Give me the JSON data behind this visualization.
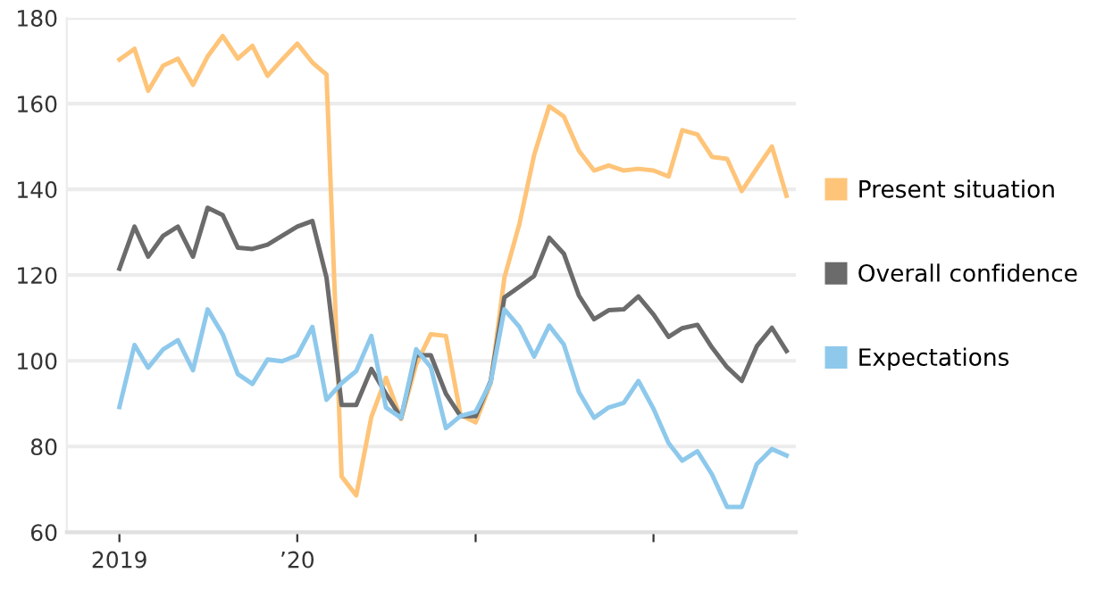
{
  "chart_data": {
    "type": "line",
    "x": [
      "2019-01",
      "2019-02",
      "2019-03",
      "2019-04",
      "2019-05",
      "2019-06",
      "2019-07",
      "2019-08",
      "2019-09",
      "2019-10",
      "2019-11",
      "2019-12",
      "2020-01",
      "2020-02",
      "2020-03",
      "2020-04",
      "2020-05",
      "2020-06",
      "2020-07",
      "2020-08",
      "2020-09",
      "2020-10",
      "2020-11",
      "2020-12",
      "2021-01",
      "2021-02",
      "2021-03",
      "2021-04",
      "2021-05",
      "2021-06",
      "2021-07",
      "2021-08",
      "2021-09",
      "2021-10",
      "2021-11",
      "2021-12",
      "2022-01",
      "2022-02",
      "2022-03",
      "2022-04",
      "2022-05",
      "2022-06",
      "2022-07",
      "2022-08",
      "2022-09",
      "2022-10"
    ],
    "series": [
      {
        "name": "Present situation",
        "color": "#fec479",
        "values": [
          170.3,
          172.8,
          163,
          168.9,
          170.5,
          164.4,
          171,
          175.8,
          170.5,
          173.5,
          166.5,
          170.3,
          174,
          169.6,
          166.8,
          73,
          68.6,
          86.9,
          96,
          86.4,
          99.2,
          106.2,
          105.8,
          87.4,
          85.6,
          94.8,
          119.4,
          132,
          148,
          159.4,
          157,
          149,
          144.4,
          145.6,
          144.4,
          144.8,
          144.4,
          143,
          153.8,
          152.8,
          147.6,
          147.1,
          139.6,
          144.9,
          150,
          138.5
        ]
      },
      {
        "name": "Overall confidence",
        "color": "#6b6b6b",
        "values": [
          121.5,
          131.3,
          124.3,
          129.2,
          131.3,
          124.3,
          135.7,
          134,
          126.4,
          126.1,
          127.1,
          129.2,
          131.3,
          132.6,
          119.4,
          89.7,
          89.7,
          98.1,
          92.3,
          86.7,
          101.3,
          101.3,
          92.3,
          87.1,
          87.1,
          95.3,
          114.8,
          117.3,
          119.8,
          128.7,
          125,
          115.2,
          109.7,
          111.8,
          112,
          115,
          110.8,
          105.6,
          107.6,
          108.4,
          103.1,
          98.5,
          95.3,
          103.4,
          107.7,
          102.3
        ]
      },
      {
        "name": "Expectations",
        "color": "#8ec9ec",
        "values": [
          89.2,
          103.7,
          98.4,
          102.7,
          104.8,
          97.8,
          112,
          106.2,
          96.9,
          94.6,
          100.3,
          99.9,
          101.3,
          107.9,
          90.9,
          94.8,
          97.6,
          105.8,
          89.1,
          86.7,
          102.7,
          98.5,
          84.3,
          87.1,
          88.1,
          95,
          112,
          107.9,
          101,
          108.2,
          103.8,
          92.7,
          86.7,
          89.1,
          90.2,
          95.3,
          88.8,
          80.8,
          76.7,
          78.9,
          73.5,
          65.9,
          65.9,
          75.9,
          79.4,
          77.9
        ]
      }
    ],
    "xlim": [
      "2018-09-15",
      "2022-10-20"
    ],
    "xticks": [
      {
        "value": "2019-01",
        "label": "2019"
      },
      {
        "value": "2020-01",
        "label": "’20"
      },
      {
        "value": "2021-01",
        "label": null
      },
      {
        "value": "2022-01",
        "label": null
      }
    ],
    "ylim": [
      60,
      180
    ],
    "yticks": [
      60,
      80,
      100,
      120,
      140,
      160,
      180
    ],
    "grid": "y",
    "legend": "right",
    "marker": "none",
    "line_style": "solid"
  }
}
